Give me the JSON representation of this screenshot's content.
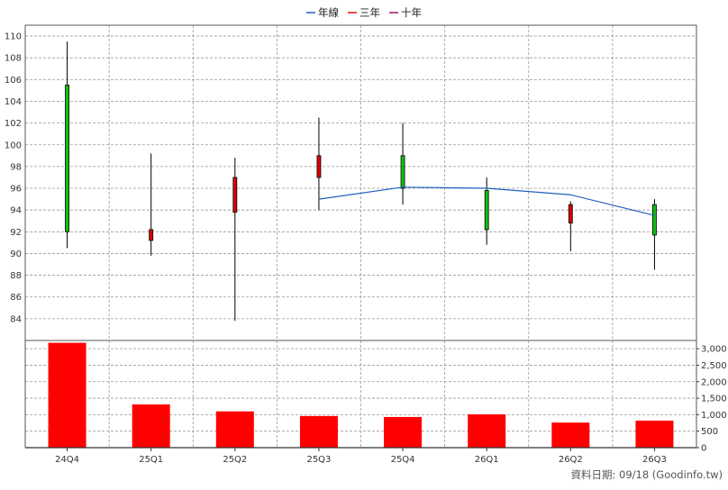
{
  "legend": [
    {
      "name": "年線",
      "color": "#1f5fbf",
      "icon": "line-swatch"
    },
    {
      "name": "三年",
      "color": "#d01010",
      "icon": "line-swatch"
    },
    {
      "name": "十年",
      "color": "#a01060",
      "icon": "line-swatch"
    }
  ],
  "footer_text": "資料日期: 09/18  (Goodinfo.tw)",
  "colors": {
    "up": "#e00000",
    "down": "#10c010",
    "volume": "#ff0000",
    "annual_line": "#1f5fbf",
    "grid": "#999999"
  },
  "chart_data": [
    {
      "type": "candlestick",
      "categories": [
        "24Q4",
        "25Q1",
        "25Q2",
        "25Q3",
        "25Q4",
        "26Q1",
        "26Q2",
        "26Q3"
      ],
      "ohlc": [
        {
          "open": 105.5,
          "high": 109.5,
          "low": 90.5,
          "close": 92.0
        },
        {
          "open": 91.2,
          "high": 99.2,
          "low": 89.8,
          "close": 92.2
        },
        {
          "open": 93.8,
          "high": 98.8,
          "low": 83.8,
          "close": 97.0
        },
        {
          "open": 97.0,
          "high": 102.5,
          "low": 94.0,
          "close": 99.0
        },
        {
          "open": 99.0,
          "high": 102.0,
          "low": 94.5,
          "close": 96.0
        },
        {
          "open": 95.8,
          "high": 97.0,
          "low": 90.8,
          "close": 92.2
        },
        {
          "open": 92.8,
          "high": 94.8,
          "low": 90.2,
          "close": 94.5
        },
        {
          "open": 94.5,
          "high": 95.0,
          "low": 88.5,
          "close": 91.7
        }
      ],
      "series": [
        {
          "name": "年線",
          "values": [
            null,
            null,
            null,
            95.0,
            96.1,
            96.0,
            95.4,
            93.5
          ]
        }
      ],
      "y_ticks": [
        84,
        86,
        88,
        90,
        92,
        94,
        96,
        98,
        100,
        102,
        104,
        106,
        108,
        110
      ],
      "ylim": [
        82,
        111
      ],
      "grid": true,
      "legend_position": "top-center"
    },
    {
      "type": "bar",
      "categories": [
        "24Q4",
        "25Q1",
        "25Q2",
        "25Q3",
        "25Q4",
        "26Q1",
        "26Q2",
        "26Q3"
      ],
      "values": [
        3180,
        1310,
        1100,
        960,
        930,
        1010,
        760,
        820
      ],
      "y_ticks": [
        "0",
        "500",
        "1,000",
        "1,500",
        "2,000",
        "2,500",
        "3,000"
      ],
      "y_tick_values": [
        0,
        500,
        1000,
        1500,
        2000,
        2500,
        3000
      ],
      "ylim": [
        0,
        3250
      ],
      "grid": true
    }
  ]
}
